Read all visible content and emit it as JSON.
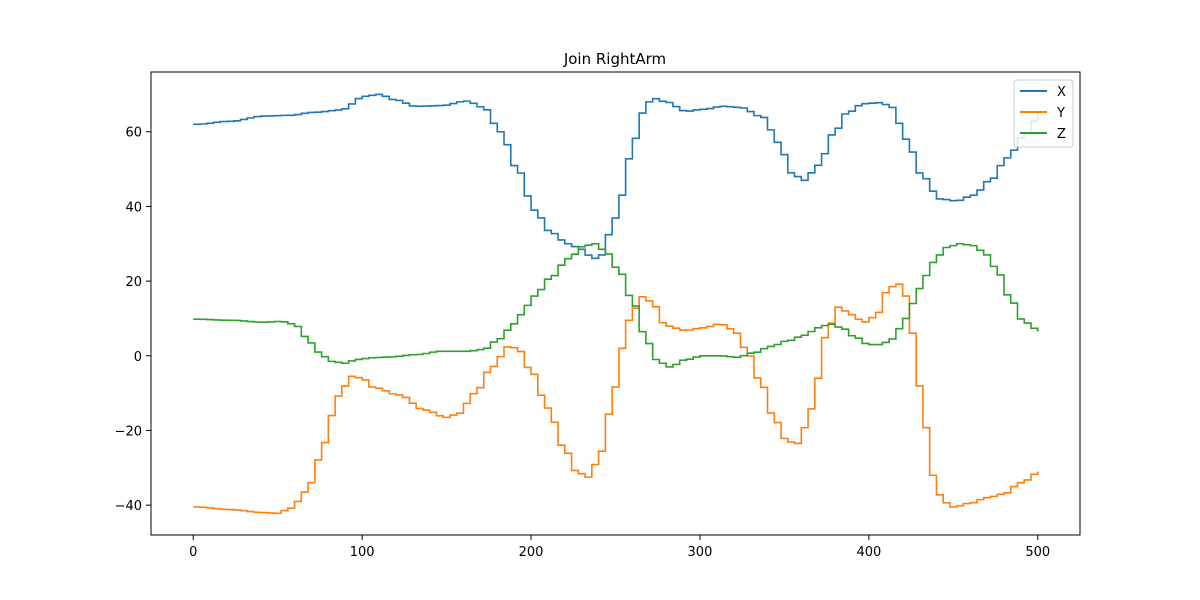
{
  "chart_data": {
    "type": "line",
    "title": "Join RightArm",
    "xlabel": "",
    "ylabel": "",
    "xlim": [
      -25,
      525
    ],
    "ylim": [
      -48,
      76
    ],
    "xticks": [
      0,
      100,
      200,
      300,
      400,
      500
    ],
    "yticks": [
      -40,
      -20,
      0,
      20,
      40,
      60
    ],
    "tick_labels_x": [
      "0",
      "100",
      "200",
      "300",
      "400",
      "500"
    ],
    "tick_labels_y": [
      "−40",
      "−20",
      "0",
      "20",
      "40",
      "60"
    ],
    "grid": false,
    "legend": "top-right",
    "step": 4,
    "series": [
      {
        "name": "X",
        "color": "#1f77b4",
        "points": [
          [
            0,
            62
          ],
          [
            20,
            62.8
          ],
          [
            40,
            64.2
          ],
          [
            55,
            64.4
          ],
          [
            70,
            65.2
          ],
          [
            85,
            65.8
          ],
          [
            100,
            69.5
          ],
          [
            108,
            70
          ],
          [
            118,
            68.5
          ],
          [
            130,
            66.8
          ],
          [
            145,
            67.0
          ],
          [
            160,
            68.2
          ],
          [
            170,
            66.5
          ],
          [
            180,
            60
          ],
          [
            190,
            50
          ],
          [
            200,
            39
          ],
          [
            210,
            33
          ],
          [
            220,
            30
          ],
          [
            228,
            28.5
          ],
          [
            235,
            26
          ],
          [
            240,
            27
          ],
          [
            245,
            33
          ],
          [
            252,
            43
          ],
          [
            258,
            56
          ],
          [
            264,
            65
          ],
          [
            270,
            69
          ],
          [
            278,
            68
          ],
          [
            290,
            65.5
          ],
          [
            300,
            66
          ],
          [
            312,
            66.8
          ],
          [
            322,
            66.5
          ],
          [
            335,
            64
          ],
          [
            345,
            57
          ],
          [
            352,
            49
          ],
          [
            360,
            47
          ],
          [
            368,
            51
          ],
          [
            378,
            60
          ],
          [
            385,
            65
          ],
          [
            395,
            67.5
          ],
          [
            405,
            67.8
          ],
          [
            412,
            66.5
          ],
          [
            420,
            58
          ],
          [
            430,
            48
          ],
          [
            440,
            42
          ],
          [
            450,
            41.5
          ],
          [
            460,
            43
          ],
          [
            470,
            47
          ],
          [
            480,
            53
          ],
          [
            490,
            59
          ],
          [
            500,
            65
          ]
        ]
      },
      {
        "name": "Y",
        "color": "#ff7f0e",
        "points": [
          [
            0,
            -40.5
          ],
          [
            20,
            -41.2
          ],
          [
            40,
            -42
          ],
          [
            48,
            -42.2
          ],
          [
            55,
            -41
          ],
          [
            60,
            -39
          ],
          [
            68,
            -34
          ],
          [
            75,
            -24
          ],
          [
            80,
            -16
          ],
          [
            86,
            -9
          ],
          [
            92,
            -5.5
          ],
          [
            98,
            -6
          ],
          [
            105,
            -8.5
          ],
          [
            120,
            -10.5
          ],
          [
            135,
            -14.5
          ],
          [
            148,
            -16.5
          ],
          [
            155,
            -15.5
          ],
          [
            165,
            -10
          ],
          [
            175,
            -3
          ],
          [
            185,
            2.5
          ],
          [
            190,
            2
          ],
          [
            198,
            -4
          ],
          [
            208,
            -14
          ],
          [
            218,
            -25
          ],
          [
            225,
            -31
          ],
          [
            232,
            -32.5
          ],
          [
            238,
            -28
          ],
          [
            245,
            -15
          ],
          [
            252,
            2
          ],
          [
            258,
            12
          ],
          [
            265,
            16
          ],
          [
            270,
            14
          ],
          [
            278,
            8
          ],
          [
            290,
            6.8
          ],
          [
            300,
            7.5
          ],
          [
            310,
            8.5
          ],
          [
            318,
            7
          ],
          [
            325,
            2
          ],
          [
            335,
            -8
          ],
          [
            342,
            -17
          ],
          [
            350,
            -23
          ],
          [
            357,
            -23.5
          ],
          [
            362,
            -17
          ],
          [
            368,
            -6
          ],
          [
            373,
            6
          ],
          [
            380,
            13
          ],
          [
            388,
            11
          ],
          [
            395,
            9
          ],
          [
            402,
            10.5
          ],
          [
            410,
            18
          ],
          [
            415,
            19.5
          ],
          [
            420,
            16
          ],
          [
            425,
            5
          ],
          [
            430,
            -15
          ],
          [
            436,
            -32
          ],
          [
            442,
            -39
          ],
          [
            448,
            -40.5
          ],
          [
            458,
            -39.5
          ],
          [
            468,
            -38
          ],
          [
            478,
            -37
          ],
          [
            488,
            -34
          ],
          [
            500,
            -31
          ]
        ]
      },
      {
        "name": "Z",
        "color": "#2ca02c",
        "points": [
          [
            0,
            9.8
          ],
          [
            20,
            9.5
          ],
          [
            40,
            9
          ],
          [
            50,
            9.2
          ],
          [
            58,
            8.5
          ],
          [
            65,
            5
          ],
          [
            72,
            1
          ],
          [
            80,
            -1.5
          ],
          [
            88,
            -2
          ],
          [
            95,
            -1
          ],
          [
            105,
            -0.5
          ],
          [
            115,
            -0.3
          ],
          [
            130,
            0.3
          ],
          [
            145,
            1.2
          ],
          [
            160,
            1.2
          ],
          [
            170,
            1.7
          ],
          [
            178,
            4
          ],
          [
            185,
            7
          ],
          [
            192,
            11
          ],
          [
            200,
            16
          ],
          [
            210,
            21
          ],
          [
            220,
            26
          ],
          [
            230,
            29.5
          ],
          [
            236,
            30
          ],
          [
            242,
            28
          ],
          [
            250,
            23
          ],
          [
            258,
            15
          ],
          [
            265,
            6
          ],
          [
            272,
            -1
          ],
          [
            280,
            -3
          ],
          [
            290,
            -1
          ],
          [
            300,
            0
          ],
          [
            310,
            0
          ],
          [
            320,
            -0.4
          ],
          [
            330,
            0.8
          ],
          [
            340,
            2.5
          ],
          [
            350,
            4
          ],
          [
            360,
            5.5
          ],
          [
            368,
            7.5
          ],
          [
            375,
            8.5
          ],
          [
            382,
            7.5
          ],
          [
            390,
            5
          ],
          [
            398,
            3
          ],
          [
            405,
            3
          ],
          [
            412,
            4.5
          ],
          [
            420,
            10
          ],
          [
            428,
            18
          ],
          [
            436,
            25
          ],
          [
            444,
            29
          ],
          [
            452,
            30
          ],
          [
            460,
            29.5
          ],
          [
            468,
            27
          ],
          [
            475,
            22
          ],
          [
            482,
            15
          ],
          [
            490,
            9
          ],
          [
            500,
            6.5
          ]
        ]
      }
    ]
  }
}
